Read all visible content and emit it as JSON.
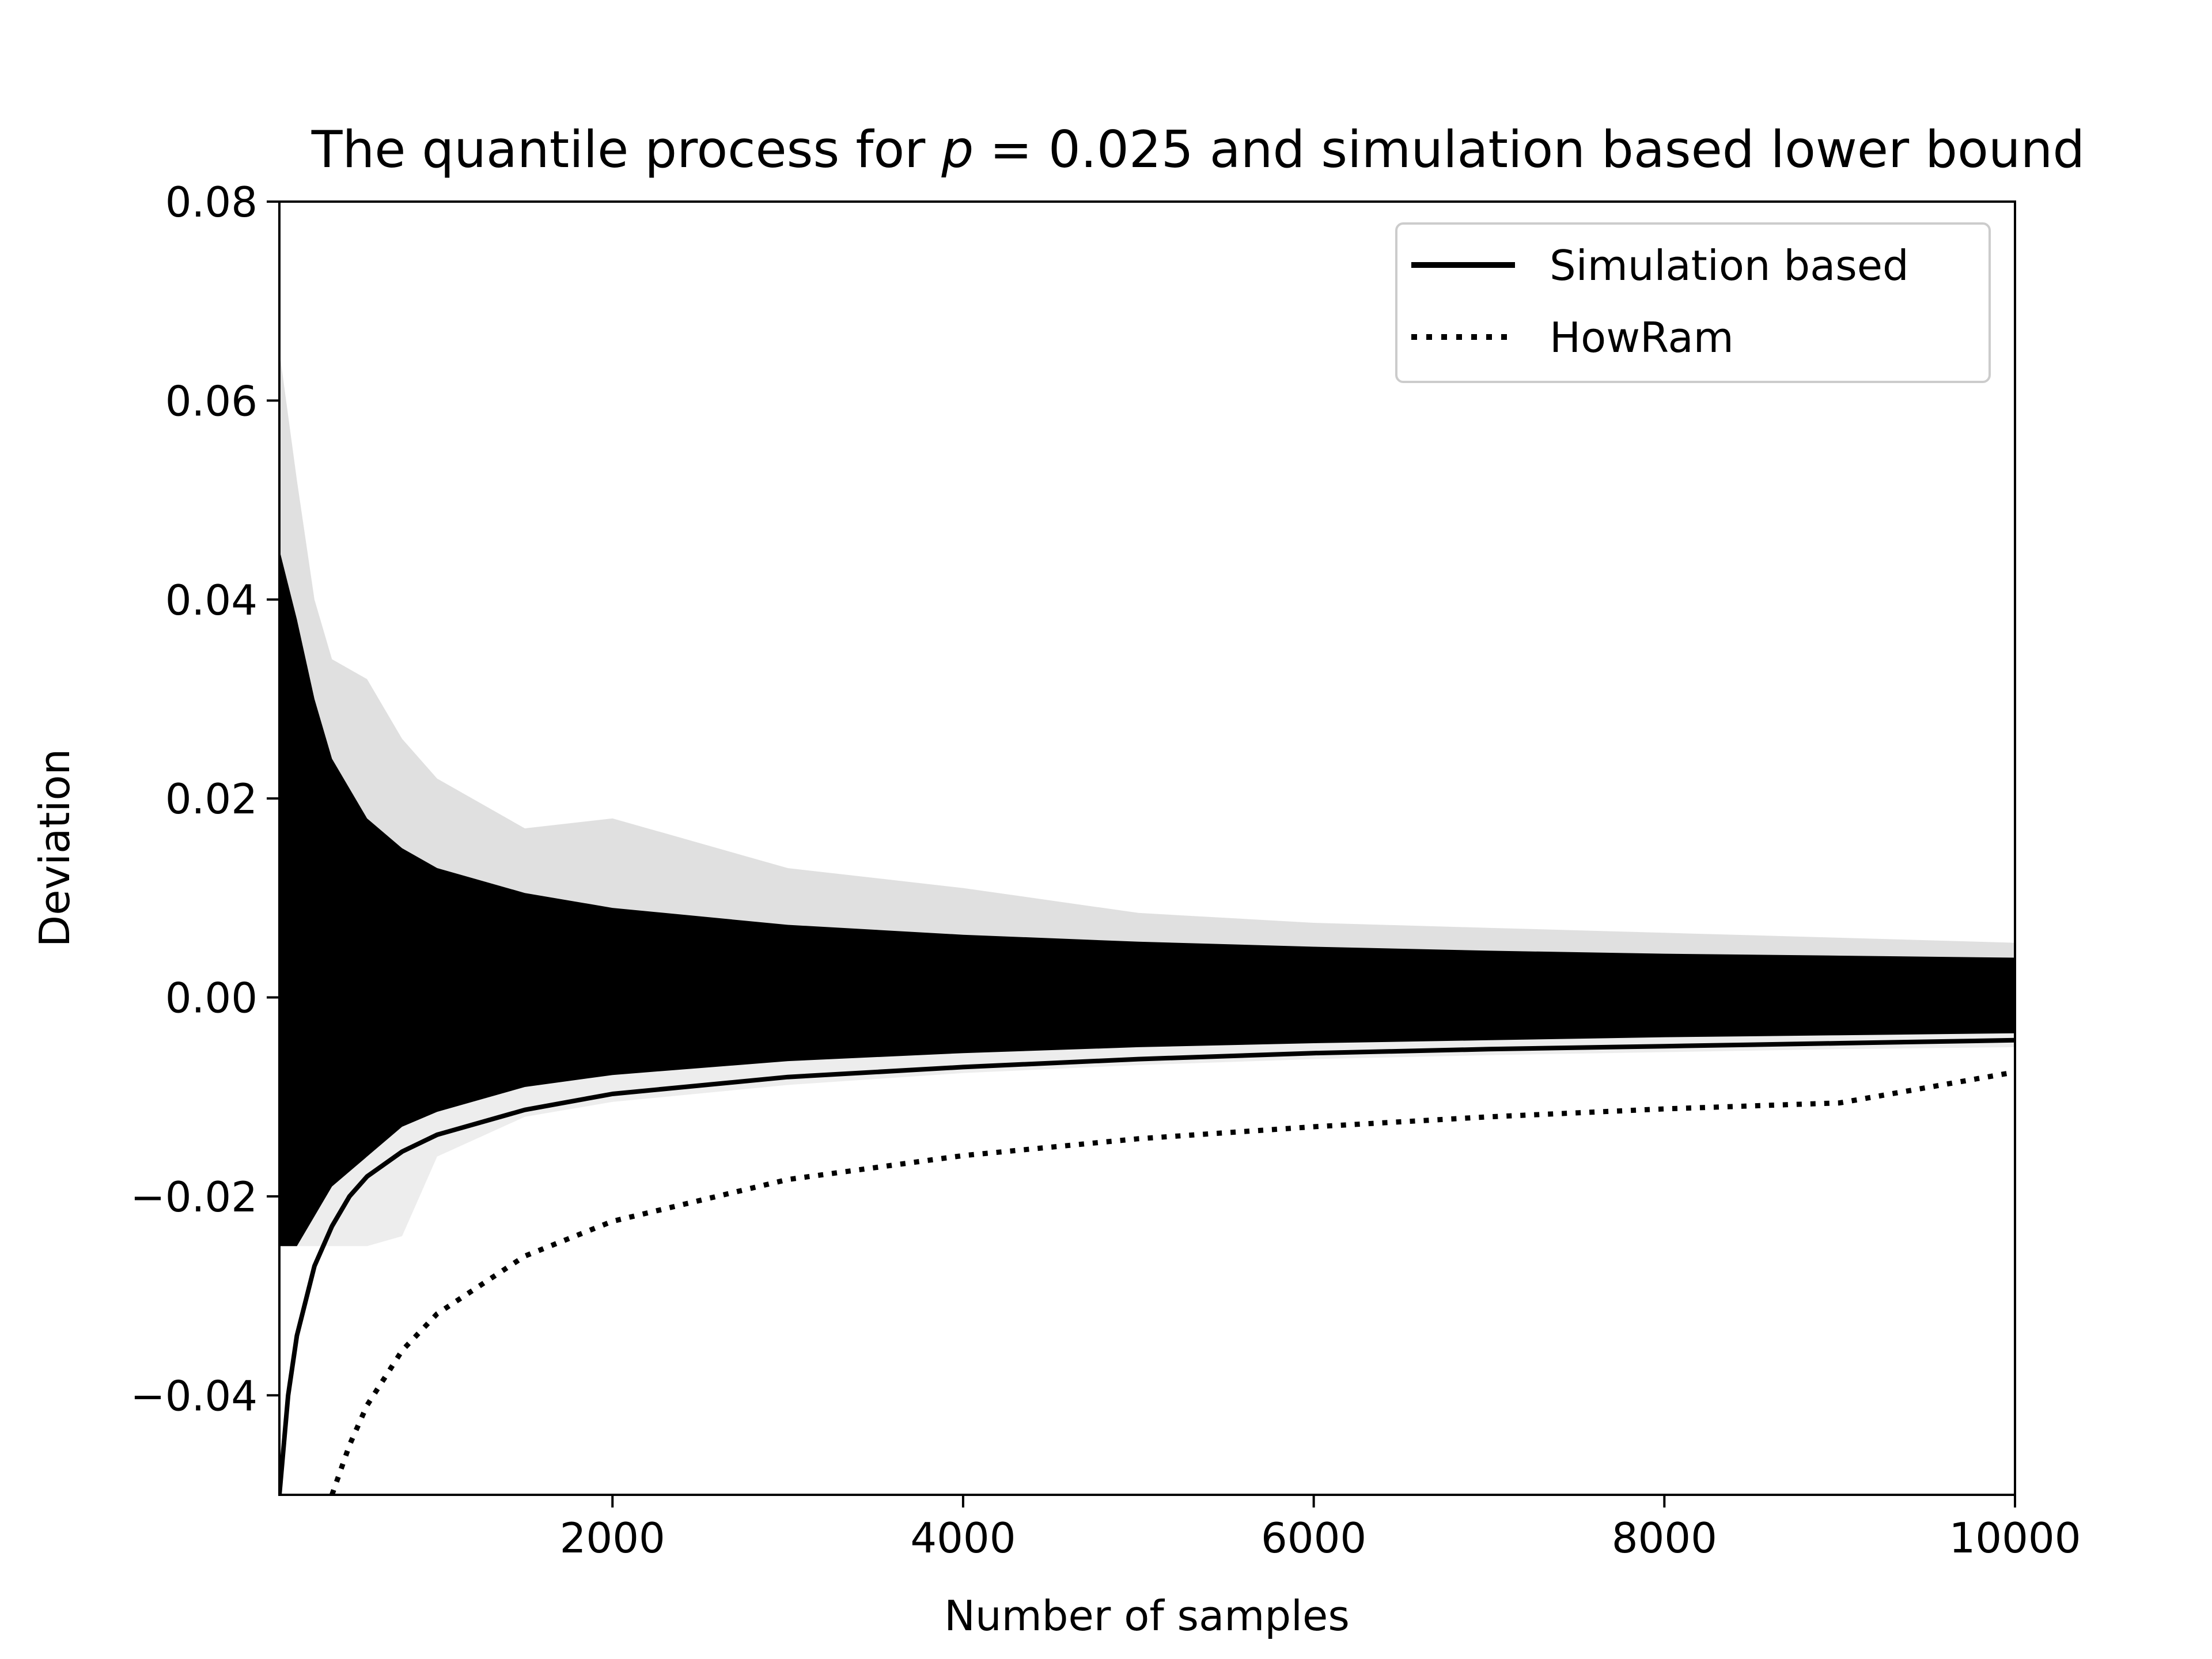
{
  "chart_data": {
    "type": "line",
    "title_prefix": "The quantile process for ",
    "title_var": "p",
    "title_eq": " = 0.025",
    "title_suffix": " and simulation based lower bound",
    "xlabel": "Number of samples",
    "ylabel": "Deviation",
    "xlim": [
      100,
      10000
    ],
    "ylim": [
      -0.05,
      0.08
    ],
    "xticks": [
      2000,
      4000,
      6000,
      8000,
      10000
    ],
    "xtick_labels": [
      "2000",
      "4000",
      "6000",
      "8000",
      "10000"
    ],
    "yticks": [
      0.08,
      0.06,
      0.04,
      0.02,
      0.0,
      -0.02,
      -0.04
    ],
    "ytick_labels": [
      "0.08",
      "0.06",
      "0.04",
      "0.02",
      "0.00",
      "−0.02",
      "−0.04"
    ],
    "grid": false,
    "legend_position": "top-right",
    "series": [
      {
        "name": "Simulation based",
        "style": "solid",
        "color": "#000000",
        "x": [
          100,
          150,
          200,
          300,
          400,
          500,
          600,
          800,
          1000,
          1500,
          2000,
          3000,
          4000,
          5000,
          6000,
          7000,
          8000,
          9000,
          10000
        ],
        "y": [
          -0.05,
          -0.04,
          -0.034,
          -0.027,
          -0.023,
          -0.02,
          -0.018,
          -0.0155,
          -0.0138,
          -0.0113,
          -0.0097,
          -0.008,
          -0.007,
          -0.0062,
          -0.0056,
          -0.0052,
          -0.0049,
          -0.0046,
          -0.0043
        ]
      },
      {
        "name": "HowRam",
        "style": "dotted",
        "color": "#000000",
        "x": [
          400,
          500,
          600,
          800,
          1000,
          1500,
          2000,
          3000,
          4000,
          5000,
          6000,
          7000,
          8000,
          9000,
          10000
        ],
        "y": [
          -0.05,
          -0.045,
          -0.041,
          -0.0355,
          -0.0318,
          -0.026,
          -0.0225,
          -0.0183,
          -0.0159,
          -0.0142,
          -0.013,
          -0.012,
          -0.0112,
          -0.0106,
          -0.0075
        ]
      }
    ],
    "envelope": {
      "description_color": "#000000",
      "x": [
        100,
        200,
        300,
        400,
        600,
        800,
        1000,
        1500,
        2000,
        3000,
        4000,
        5000,
        6000,
        7000,
        8000,
        9000,
        10000
      ],
      "upper_core": [
        0.045,
        0.038,
        0.03,
        0.024,
        0.018,
        0.015,
        0.013,
        0.0105,
        0.009,
        0.0073,
        0.0063,
        0.0056,
        0.0051,
        0.0047,
        0.0044,
        0.0042,
        0.004
      ],
      "upper_faint": [
        0.065,
        0.052,
        0.04,
        0.034,
        0.032,
        0.026,
        0.022,
        0.017,
        0.018,
        0.013,
        0.011,
        0.0085,
        0.0075,
        0.007,
        0.0065,
        0.006,
        0.0055
      ],
      "lower_core": [
        -0.025,
        -0.025,
        -0.022,
        -0.019,
        -0.016,
        -0.013,
        -0.0115,
        -0.009,
        -0.0078,
        -0.0064,
        -0.0056,
        -0.005,
        -0.0046,
        -0.0043,
        -0.004,
        -0.0038,
        -0.0036
      ],
      "lower_faint": [
        -0.025,
        -0.025,
        -0.025,
        -0.025,
        -0.025,
        -0.024,
        -0.016,
        -0.012,
        -0.0105,
        -0.0088,
        -0.0076,
        -0.0068,
        -0.0062,
        -0.0058,
        -0.0055,
        -0.0052,
        -0.005
      ]
    }
  }
}
